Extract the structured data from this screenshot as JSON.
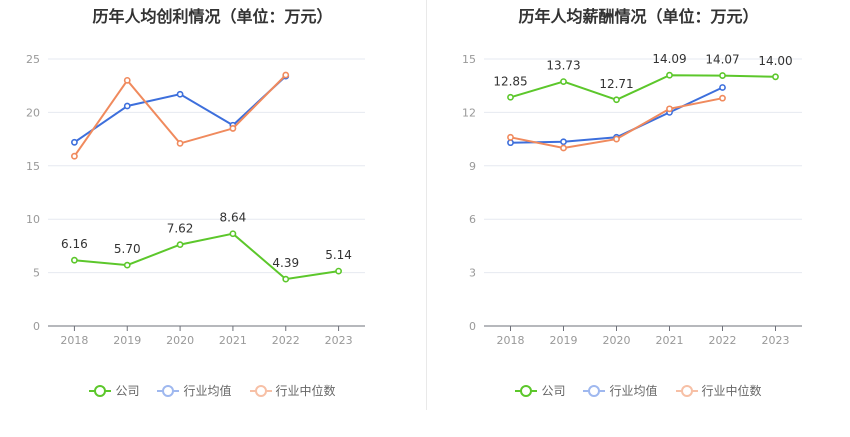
{
  "chart_data": [
    {
      "type": "line",
      "title": "历年人均创利情况（单位：万元）",
      "categories": [
        "2018",
        "2019",
        "2020",
        "2021",
        "2022",
        "2023"
      ],
      "ylim": [
        0,
        25
      ],
      "yticks": [
        "0",
        "5",
        "10",
        "15",
        "20",
        "25"
      ],
      "grid": true,
      "legend_position": "bottom",
      "series": [
        {
          "name": "公司",
          "color": "#5cc72b",
          "values": [
            6.16,
            5.7,
            7.62,
            8.64,
            4.39,
            5.14
          ],
          "labels": [
            "6.16",
            "5.70",
            "7.62",
            "8.64",
            "4.39",
            "5.14"
          ]
        },
        {
          "name": "行业均值",
          "color": "#3d6fdc",
          "values": [
            17.2,
            20.6,
            21.7,
            18.8,
            23.4,
            null
          ]
        },
        {
          "name": "行业中位数",
          "color": "#f08a5d",
          "values": [
            15.9,
            23.0,
            17.1,
            18.5,
            23.5,
            null
          ]
        }
      ]
    },
    {
      "type": "line",
      "title": "历年人均薪酬情况（单位：万元）",
      "categories": [
        "2018",
        "2019",
        "2020",
        "2021",
        "2022",
        "2023"
      ],
      "ylim": [
        0,
        15
      ],
      "yticks": [
        "0",
        "3",
        "6",
        "9",
        "12",
        "15"
      ],
      "grid": true,
      "legend_position": "bottom",
      "series": [
        {
          "name": "公司",
          "color": "#5cc72b",
          "values": [
            12.85,
            13.73,
            12.71,
            14.09,
            14.07,
            14.0
          ],
          "labels": [
            "12.85",
            "13.73",
            "12.71",
            "14.09",
            "14.07",
            "14.00"
          ]
        },
        {
          "name": "行业均值",
          "color": "#3d6fdc",
          "values": [
            10.3,
            10.35,
            10.6,
            12.0,
            13.4,
            null
          ]
        },
        {
          "name": "行业中位数",
          "color": "#f08a5d",
          "values": [
            10.6,
            10.0,
            10.5,
            12.2,
            12.8,
            null
          ]
        }
      ]
    }
  ]
}
